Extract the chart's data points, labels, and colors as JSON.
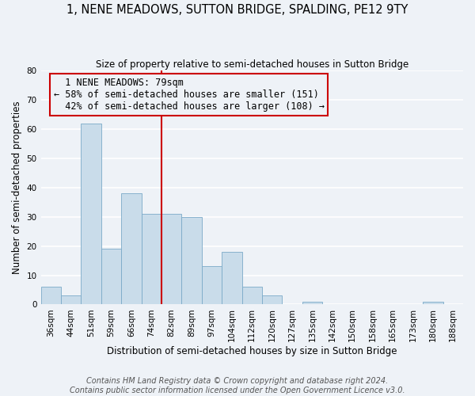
{
  "title": "1, NENE MEADOWS, SUTTON BRIDGE, SPALDING, PE12 9TY",
  "subtitle": "Size of property relative to semi-detached houses in Sutton Bridge",
  "xlabel": "Distribution of semi-detached houses by size in Sutton Bridge",
  "ylabel": "Number of semi-detached properties",
  "bins": [
    "36sqm",
    "44sqm",
    "51sqm",
    "59sqm",
    "66sqm",
    "74sqm",
    "82sqm",
    "89sqm",
    "97sqm",
    "104sqm",
    "112sqm",
    "120sqm",
    "127sqm",
    "135sqm",
    "142sqm",
    "150sqm",
    "158sqm",
    "165sqm",
    "173sqm",
    "180sqm",
    "188sqm"
  ],
  "values": [
    6,
    3,
    62,
    19,
    38,
    31,
    31,
    30,
    13,
    18,
    6,
    3,
    0,
    1,
    0,
    0,
    0,
    0,
    0,
    1,
    0
  ],
  "bar_color": "#c9dcea",
  "bar_edge_color": "#7baac8",
  "marker_line_color": "#cc0000",
  "box_edge_color": "#cc0000",
  "ylim": [
    0,
    80
  ],
  "yticks": [
    0,
    10,
    20,
    30,
    40,
    50,
    60,
    70,
    80
  ],
  "marker_label": "1 NENE MEADOWS: 79sqm",
  "smaller_pct": "58%",
  "smaller_count": 151,
  "larger_pct": "42%",
  "larger_count": 108,
  "footer1": "Contains HM Land Registry data © Crown copyright and database right 2024.",
  "footer2": "Contains public sector information licensed under the Open Government Licence v3.0.",
  "background_color": "#eef2f7",
  "grid_color": "#ffffff",
  "title_fontsize": 10.5,
  "subtitle_fontsize": 8.5,
  "axis_label_fontsize": 8.5,
  "tick_fontsize": 7.5,
  "annotation_fontsize": 8.5,
  "footer_fontsize": 7
}
